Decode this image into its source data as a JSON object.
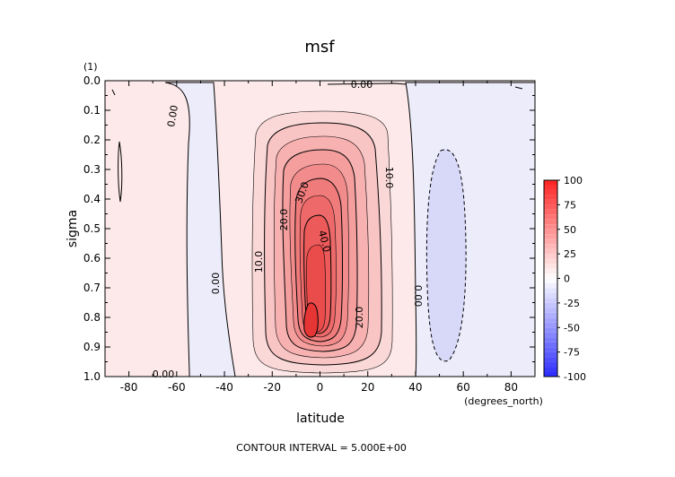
{
  "chart_data": {
    "type": "contour",
    "title": "msf",
    "corner_label": "(1)",
    "xlabel": "latitude",
    "ylabel": "sigma",
    "x_units": "(degrees_north)",
    "xlim": [
      -90,
      90
    ],
    "ylim": [
      0.0,
      1.0
    ],
    "y_inverted": true,
    "x_ticks": [
      -80,
      -60,
      -40,
      -20,
      0,
      20,
      40,
      60,
      80
    ],
    "x_tick_labels": [
      "-80",
      "-60",
      "-40",
      "-20",
      "0",
      "20",
      "40",
      "60",
      "80"
    ],
    "y_ticks": [
      0.0,
      0.1,
      0.2,
      0.3,
      0.4,
      0.5,
      0.6,
      0.7,
      0.8,
      0.9,
      1.0
    ],
    "y_tick_labels": [
      "0.0",
      "0.1",
      "0.2",
      "0.3",
      "0.4",
      "0.5",
      "0.6",
      "0.7",
      "0.8",
      "0.9",
      "1.0"
    ],
    "contour_interval": 5.0,
    "footer": "CONTOUR INTERVAL = 5.000E+00",
    "contour_labels": [
      {
        "text": "0.00",
        "lat": -67,
        "sigma": 0.12
      },
      {
        "text": "0.00",
        "lat": -50,
        "sigma": 0.72
      },
      {
        "text": "0.00",
        "lat": -76,
        "sigma": 0.995
      },
      {
        "text": "0.00",
        "lat": 22,
        "sigma": 0.02
      },
      {
        "text": "0.00",
        "lat": 44,
        "sigma": 0.72
      },
      {
        "text": "10.0",
        "lat": 34,
        "sigma": 0.33
      },
      {
        "text": "10.0",
        "lat": -30,
        "sigma": 0.62
      },
      {
        "text": "20.0",
        "lat": -17,
        "sigma": 0.46
      },
      {
        "text": "20.0",
        "lat": 20,
        "sigma": 0.82
      },
      {
        "text": "30.0",
        "lat": -7,
        "sigma": 0.38
      },
      {
        "text": "40.0",
        "lat": 1,
        "sigma": 0.54
      }
    ],
    "colorbar": {
      "ticks": [
        100,
        75,
        50,
        25,
        0,
        -25,
        -50,
        -75,
        -100
      ],
      "tick_labels": [
        "100",
        "75",
        "50",
        "25",
        "0",
        "-25",
        "-50",
        "-75",
        "-100"
      ],
      "vmin": -100,
      "vmax": 100,
      "cmap": "blue-white-red",
      "neg_color": "#2a2aff",
      "pos_color": "#ff2020"
    },
    "features": [
      {
        "kind": "positive_cell",
        "center_lat": -5,
        "center_sigma": 0.82,
        "max_value": 50,
        "lat_range": [
          -25,
          30
        ],
        "sigma_range": [
          0.1,
          0.96
        ]
      },
      {
        "kind": "negative_cell",
        "center_lat": 52,
        "center_sigma": 0.6,
        "min_value": -5,
        "lat_range": [
          40,
          62
        ],
        "sigma_range": [
          0.23,
          0.95
        ]
      }
    ]
  }
}
